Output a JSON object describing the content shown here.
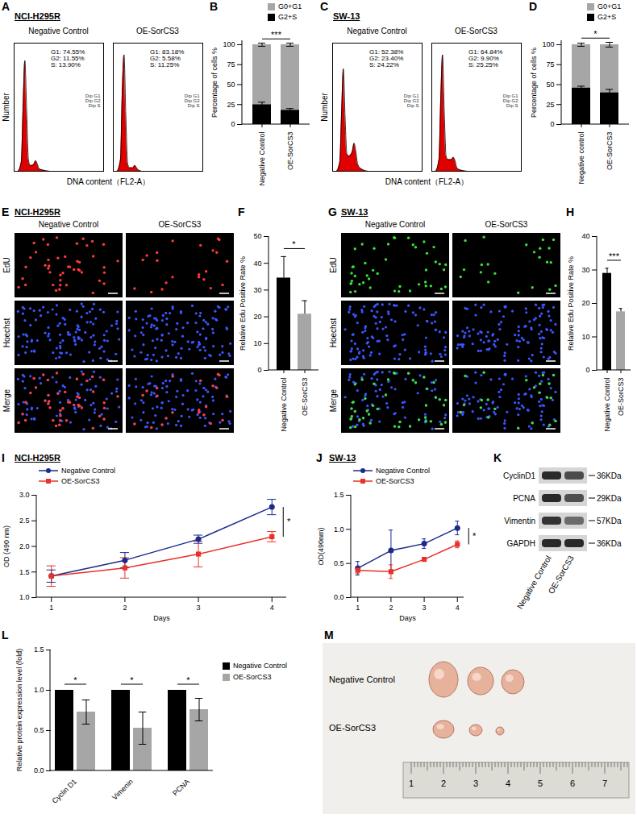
{
  "chart_data": [
    {
      "panel": "A",
      "type": "flow_histogram",
      "title": "NCI-H295R",
      "x_label": "DNA content（FL2-A）",
      "y_label": "Number",
      "tick_labels": false,
      "xlim": [
        0,
        100
      ],
      "ylim": [
        0,
        110
      ],
      "color": "#e00000",
      "legend_entries": [
        "Dip G1",
        "Dip G2",
        "Dip S"
      ],
      "panels": [
        {
          "name": "Negative Control",
          "annotations": [
            "G1: 74.55%",
            "G2: 11.55%",
            "S: 13.90%"
          ],
          "x": [
            0,
            4,
            8,
            10,
            12,
            14,
            16,
            18,
            20,
            22,
            24,
            26,
            28,
            32,
            40,
            60,
            100
          ],
          "values": [
            0,
            0,
            8,
            55,
            95,
            52,
            10,
            5,
            5,
            6,
            9,
            6,
            2,
            1,
            0,
            0,
            0
          ]
        },
        {
          "name": "OE-SorCS3",
          "annotations": [
            "G1: 83.18%",
            "G2: 5.58%",
            "S: 11.25%"
          ],
          "x": [
            0,
            4,
            8,
            10,
            12,
            14,
            16,
            18,
            20,
            22,
            24,
            26,
            28,
            32,
            40,
            60,
            100
          ],
          "values": [
            0,
            0,
            10,
            68,
            100,
            48,
            7,
            3,
            3,
            3,
            5,
            3,
            1,
            0,
            0,
            0,
            0
          ]
        }
      ]
    },
    {
      "panel": "B",
      "type": "bar",
      "stacked": true,
      "categories": [
        "Negative Control",
        "OE-SorCS3"
      ],
      "y_label": "Percentage of cells %",
      "ylim": [
        0,
        105
      ],
      "yticks": [
        0,
        25,
        50,
        75,
        100
      ],
      "legend": "top-right",
      "series": [
        {
          "name": "G2+S",
          "color": "#000000",
          "values": [
            25,
            18
          ],
          "errors": [
            3,
            2
          ]
        },
        {
          "name": "G0+G1",
          "color": "#a6a6a6",
          "values": [
            75,
            82
          ],
          "errors": [
            2,
            2
          ]
        }
      ],
      "annotations": [
        "***"
      ]
    },
    {
      "panel": "C",
      "type": "flow_histogram",
      "title": "SW-13",
      "x_label": "DNA content（FL2-A）",
      "y_label": "Number",
      "tick_labels": false,
      "xlim": [
        0,
        100
      ],
      "ylim": [
        0,
        110
      ],
      "color": "#e00000",
      "legend_entries": [
        "Dip G1",
        "Dip G2",
        "Dip S"
      ],
      "panels": [
        {
          "name": "Negative Control",
          "annotations": [
            "G1: 52.38%",
            "G2: 23.40%",
            "S: 24.22%"
          ],
          "x": [
            0,
            4,
            8,
            10,
            12,
            14,
            16,
            18,
            20,
            22,
            24,
            26,
            28,
            32,
            40,
            60,
            100
          ],
          "values": [
            0,
            0,
            8,
            50,
            88,
            45,
            15,
            13,
            14,
            17,
            24,
            17,
            6,
            2,
            0,
            0,
            0
          ]
        },
        {
          "name": "OE-SorCS3",
          "annotations": [
            "G1: 64.84%",
            "G2: 9.90%",
            "S: 25.25%"
          ],
          "x": [
            0,
            4,
            8,
            10,
            12,
            14,
            16,
            18,
            20,
            22,
            24,
            26,
            28,
            32,
            40,
            60,
            100
          ],
          "values": [
            0,
            0,
            10,
            62,
            100,
            50,
            13,
            10,
            10,
            10,
            12,
            9,
            3,
            1,
            0,
            0,
            0
          ]
        }
      ]
    },
    {
      "panel": "D",
      "type": "bar",
      "stacked": true,
      "categories": [
        "Negative control",
        "OE-SorCS3"
      ],
      "y_label": "Percentage of cells %",
      "ylim": [
        0,
        105
      ],
      "yticks": [
        0,
        25,
        50,
        75,
        100
      ],
      "legend": "top-right",
      "series": [
        {
          "name": "G2+S",
          "color": "#000000",
          "values": [
            46,
            40
          ],
          "errors": [
            2,
            4
          ]
        },
        {
          "name": "G0+G1",
          "color": "#a6a6a6",
          "values": [
            54,
            60
          ],
          "errors": [
            2,
            3
          ]
        }
      ],
      "annotations": [
        "*"
      ]
    },
    {
      "panel": "E",
      "type": "image_grid",
      "title": "NCI-H295R",
      "columns": [
        "Negative Control",
        "OE-SorCS3"
      ],
      "rows": [
        "EdU",
        "Hoechst",
        "Merge"
      ],
      "color": "#ff3a3a"
    },
    {
      "panel": "F",
      "type": "bar",
      "categories": [
        "Negative Control",
        "OE-SorCS3"
      ],
      "values": [
        34.5,
        21
      ],
      "errors": [
        8,
        5
      ],
      "colors": [
        "#000000",
        "#a6a6a6"
      ],
      "y_label": "Relative Edu Positive Rate %",
      "ylim": [
        0,
        50
      ],
      "yticks": [
        0,
        10,
        20,
        30,
        40,
        50
      ],
      "annotations": [
        "*"
      ]
    },
    {
      "panel": "G",
      "type": "image_grid",
      "title": "SW-13",
      "columns": [
        "Negative Control",
        "OE-SorCS3"
      ],
      "rows": [
        "EdU",
        "Hoechst",
        "Merge"
      ],
      "color": "#3ae03a"
    },
    {
      "panel": "H",
      "type": "bar",
      "categories": [
        "Negative Control",
        "OE-SorCS3"
      ],
      "values": [
        29,
        17.5
      ],
      "errors": [
        1.5,
        1
      ],
      "colors": [
        "#000000",
        "#a6a6a6"
      ],
      "y_label": "Relative Edu Positive Rate %",
      "ylim": [
        0,
        40
      ],
      "yticks": [
        0,
        10,
        20,
        30,
        40
      ],
      "annotations": [
        "***"
      ]
    },
    {
      "panel": "I",
      "type": "line",
      "title": "NCI-H295R",
      "x": [
        1,
        2,
        3,
        4
      ],
      "x_label": "Days",
      "y_label": "OD (490 nm)",
      "xlim": [
        0.8,
        4.2
      ],
      "xticks": [
        1,
        2,
        3,
        4
      ],
      "ylim": [
        1,
        3
      ],
      "yticks": [
        {
          "value": 1,
          "label": "1.0"
        },
        {
          "value": 1.5,
          "label": "1.5"
        },
        {
          "value": 2,
          "label": "2.0"
        },
        {
          "value": 2.5,
          "label": "2.5"
        },
        {
          "value": 3,
          "label": "3.0"
        }
      ],
      "legend": "top-left",
      "series": [
        {
          "name": "Negative Control",
          "color": "#1a2a8c",
          "marker": "circle",
          "values": [
            1.42,
            1.73,
            2.14,
            2.77
          ],
          "errors": [
            0.12,
            0.15,
            0.08,
            0.15
          ]
        },
        {
          "name": "OE-SorCS3",
          "color": "#e8312a",
          "marker": "square",
          "values": [
            1.42,
            1.58,
            1.85,
            2.19
          ],
          "errors": [
            0.2,
            0.2,
            0.25,
            0.1
          ]
        }
      ],
      "annotations": [
        "*"
      ]
    },
    {
      "panel": "J",
      "type": "line",
      "title": "SW-13",
      "x": [
        1,
        2,
        3,
        4
      ],
      "x_label": "Days",
      "y_label": "OD(490nm)",
      "xlim": [
        0.8,
        4.2
      ],
      "xticks": [
        1,
        2,
        3,
        4
      ],
      "ylim": [
        0,
        1.5
      ],
      "yticks": [
        {
          "value": 0,
          "label": "0.0"
        },
        {
          "value": 0.5,
          "label": "0.5"
        },
        {
          "value": 1,
          "label": "1.0"
        },
        {
          "value": 1.5,
          "label": "1.5"
        }
      ],
      "legend": "top-left",
      "series": [
        {
          "name": "Negative Control",
          "color": "#1a2a8c",
          "marker": "circle",
          "values": [
            0.43,
            0.69,
            0.79,
            1.02
          ],
          "errors": [
            0.1,
            0.3,
            0.07,
            0.1
          ]
        },
        {
          "name": "OE-SorCS3",
          "color": "#e8312a",
          "marker": "square",
          "values": [
            0.4,
            0.38,
            0.56,
            0.78
          ],
          "errors": [
            0.05,
            0.1,
            0.02,
            0.05
          ]
        }
      ],
      "annotations": [
        "*"
      ]
    },
    {
      "panel": "K",
      "type": "western_blot",
      "rows": [
        {
          "name": "CyclinD1",
          "size": "36KDa"
        },
        {
          "name": "PCNA",
          "size": "29KDa"
        },
        {
          "name": "Vimentin",
          "size": "57KDa"
        },
        {
          "name": "GAPDH",
          "size": "36KDa"
        }
      ],
      "columns": [
        "Negative Control",
        "OE-SorCS3"
      ]
    },
    {
      "panel": "L",
      "type": "bar",
      "categories": [
        "Cyclin D1",
        "Vimenin",
        "PCNA"
      ],
      "y_label": "Relative protein expression level (fold)",
      "ylim": [
        0,
        1.5
      ],
      "yticks": [
        {
          "value": 0,
          "label": "0.0"
        },
        {
          "value": 0.5,
          "label": "0.5"
        },
        {
          "value": 1,
          "label": "1.0"
        },
        {
          "value": 1.5,
          "label": "1.5"
        }
      ],
      "legend": "right",
      "series": [
        {
          "name": "Negative Control",
          "color": "#000000",
          "values": [
            1,
            1,
            1
          ],
          "errors": [
            0,
            0,
            0
          ]
        },
        {
          "name": "OE-SorCS3",
          "color": "#a6a6a6",
          "values": [
            0.73,
            0.53,
            0.76
          ],
          "errors": [
            0.15,
            0.2,
            0.14
          ]
        }
      ],
      "annotations": [
        "*",
        "*",
        "*"
      ]
    },
    {
      "panel": "M",
      "type": "photo",
      "rows": [
        "Negative Control",
        "OE-SorCS3"
      ],
      "ruler_labels": [
        1,
        2,
        3,
        4,
        5,
        6,
        7
      ]
    }
  ]
}
